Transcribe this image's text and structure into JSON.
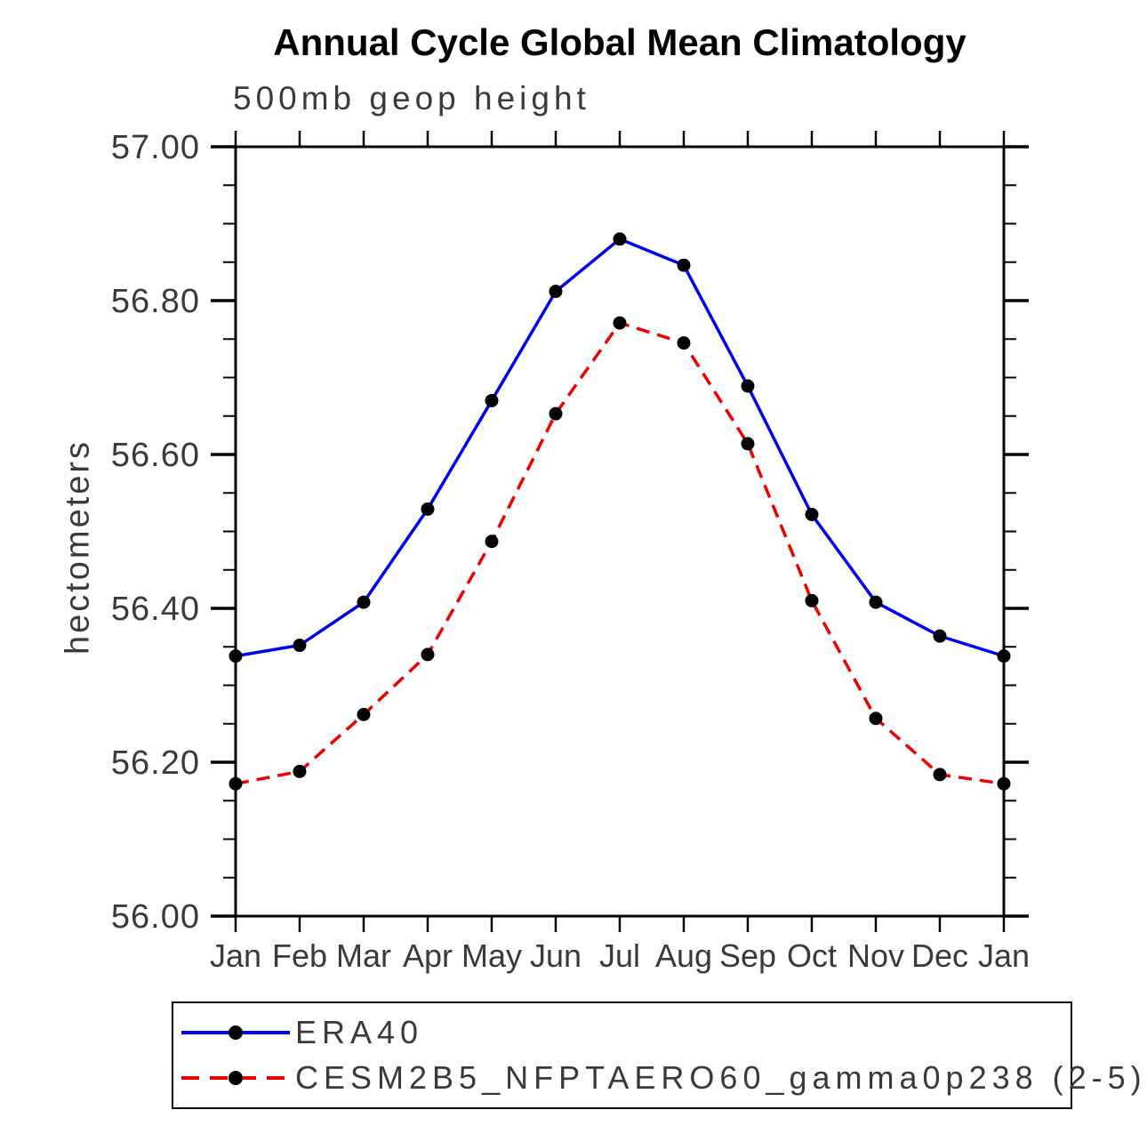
{
  "header": {
    "title": "Annual Cycle Global Mean Climatology",
    "subtitle": "500mb geop height"
  },
  "chart_data": {
    "type": "line",
    "title": "Annual Cycle Global Mean Climatology",
    "subtitle": "500mb geop height",
    "ylabel": "hectometers",
    "xlabel": "",
    "ylim": [
      56.0,
      57.0
    ],
    "ytick_labels": [
      "56.00",
      "56.20",
      "56.40",
      "56.60",
      "56.80",
      "57.00"
    ],
    "ytick_values": [
      56.0,
      56.2,
      56.4,
      56.6,
      56.8,
      57.0
    ],
    "y_minor_step": 0.05,
    "grid": false,
    "legend_position": "bottom",
    "x_labels": [
      "Jan",
      "Feb",
      "Mar",
      "Apr",
      "May",
      "Jun",
      "Jul",
      "Aug",
      "Sep",
      "Oct",
      "Nov",
      "Dec",
      "Jan"
    ],
    "series": [
      {
        "name": "ERA40",
        "color": "#0000ee",
        "style": "solid",
        "marker": "filled-circle",
        "marker_color": "#000000",
        "values": [
          56.338,
          56.352,
          56.408,
          56.529,
          56.67,
          56.812,
          56.88,
          56.846,
          56.689,
          56.522,
          56.408,
          56.364,
          56.338
        ]
      },
      {
        "name": "CESM2B5_NFPTAERO60_gamma0p238 (2-5)",
        "color": "#ee0000",
        "style": "dashed",
        "marker": "filled-circle",
        "marker_color": "#000000",
        "values": [
          56.172,
          56.188,
          56.262,
          56.34,
          56.487,
          56.653,
          56.771,
          56.745,
          56.614,
          56.41,
          56.257,
          56.184,
          56.172
        ]
      }
    ]
  }
}
